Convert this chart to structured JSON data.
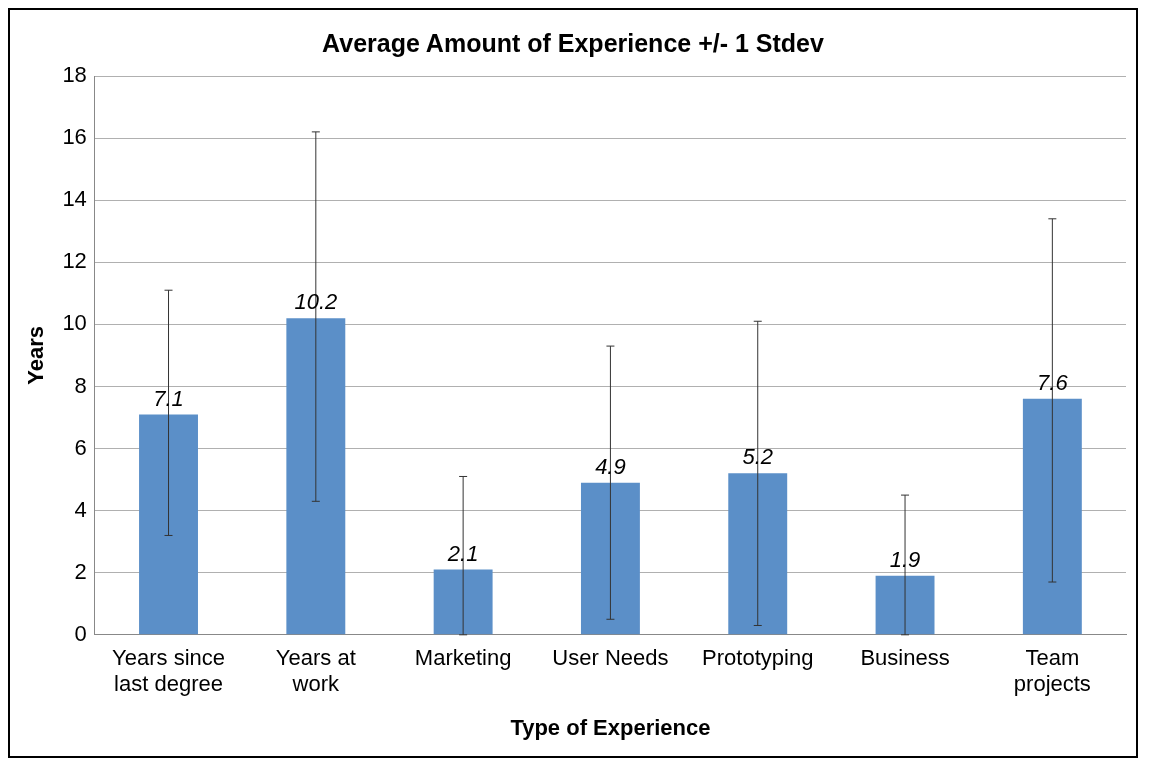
{
  "chart_data": {
    "type": "bar",
    "title": "Average Amount of Experience +/- 1 Stdev",
    "xlabel": "Type of Experience",
    "ylabel": "Years",
    "categories": [
      "Years since last degree",
      "Years at work",
      "Marketing",
      "User Needs",
      "Prototyping",
      "Business",
      "Team projects"
    ],
    "values": [
      7.1,
      10.2,
      2.1,
      4.9,
      5.2,
      1.9,
      7.6
    ],
    "errors": [
      [
        3.2,
        11.1
      ],
      [
        4.3,
        16.2
      ],
      [
        0,
        5.1
      ],
      [
        0.5,
        9.3
      ],
      [
        0.3,
        10.1
      ],
      [
        0,
        4.5
      ],
      [
        1.7,
        13.4
      ]
    ],
    "color": "#5b8fc8",
    "ylim": [
      0,
      18
    ],
    "yticks": [
      0,
      2,
      4,
      6,
      8,
      10,
      12,
      14,
      16,
      18
    ],
    "grid": "y",
    "legend": false,
    "data_labels": true
  }
}
